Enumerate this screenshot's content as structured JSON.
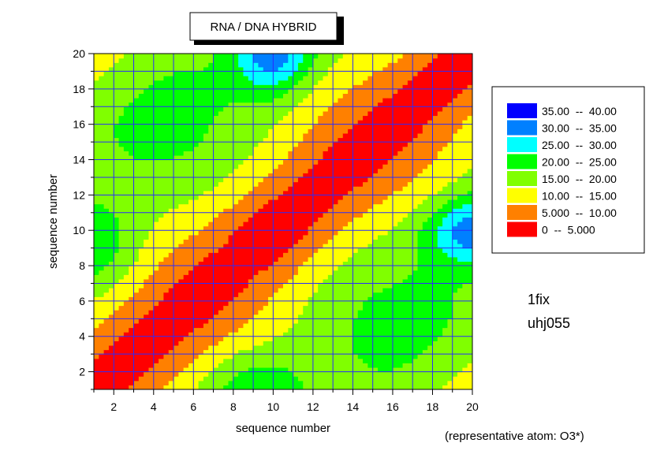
{
  "chart_data": {
    "type": "heatmap",
    "title": "RNA / DNA HYBRID",
    "xlabel": "sequence number",
    "ylabel": "sequence number",
    "xlim": [
      1,
      20
    ],
    "ylim": [
      1,
      20
    ],
    "x_ticks": [
      2,
      4,
      6,
      8,
      10,
      12,
      14,
      16,
      18,
      20
    ],
    "y_ticks": [
      2,
      4,
      6,
      8,
      10,
      12,
      14,
      16,
      18,
      20
    ],
    "grid": true,
    "legend_position": "right",
    "levels": [
      {
        "label": "35.00  --  40.00",
        "min": 35,
        "max": 40,
        "color": "#0000ff"
      },
      {
        "label": "30.00  --  35.00",
        "min": 30,
        "max": 35,
        "color": "#0080ff"
      },
      {
        "label": "25.00  --  30.00",
        "min": 25,
        "max": 30,
        "color": "#00ffff"
      },
      {
        "label": "20.00  --  25.00",
        "min": 20,
        "max": 25,
        "color": "#00ff00"
      },
      {
        "label": "15.00  --  20.00",
        "min": 15,
        "max": 20,
        "color": "#80ff00"
      },
      {
        "label": "10.00  --  15.00",
        "min": 10,
        "max": 15,
        "color": "#ffff00"
      },
      {
        "label": "5.000  --  10.00",
        "min": 5,
        "max": 10,
        "color": "#ff8000"
      },
      {
        "label": "0  --  5.000",
        "min": 0,
        "max": 5,
        "color": "#ff0000"
      }
    ],
    "annotations": [
      "1fix",
      "uhj055",
      "(representative atom: O3*)"
    ]
  }
}
